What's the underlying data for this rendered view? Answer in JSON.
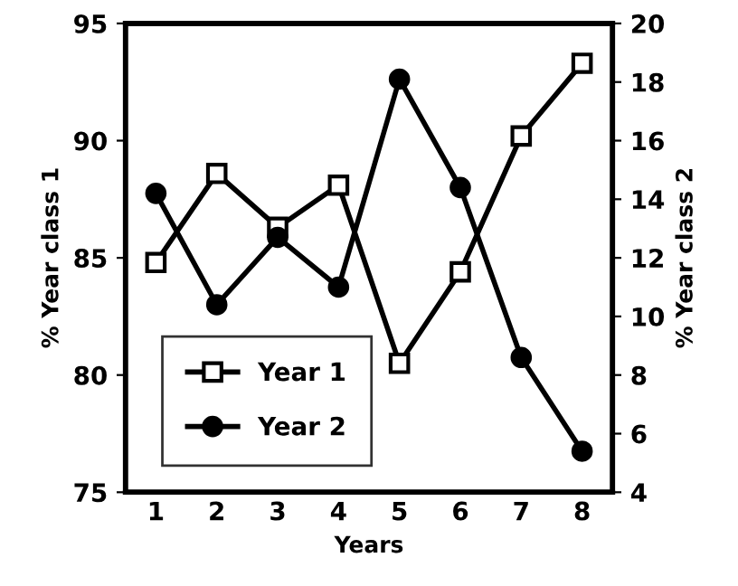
{
  "chart_data": {
    "type": "line",
    "xlabel": "Years",
    "ylabel": "% Year class 1",
    "y2label": "% Year class 2",
    "categories": [
      "1",
      "2",
      "3",
      "4",
      "5",
      "6",
      "7",
      "8"
    ],
    "series": [
      {
        "name": "Year 1",
        "color": "#000000",
        "marker": "square",
        "values": [
          84.8,
          88.6,
          86.3,
          88.1,
          80.5,
          84.4,
          90.2,
          93.3
        ]
      },
      {
        "name": "Year 2",
        "color": "#000000",
        "marker": "circle",
        "axis": "y2",
        "values": [
          14.2,
          10.4,
          12.7,
          11.0,
          18.1,
          14.4,
          8.6,
          5.4
        ]
      }
    ],
    "ylim": [
      75,
      95
    ],
    "yticks": [
      75,
      80,
      85,
      90,
      95
    ],
    "y2lim": [
      4,
      20
    ],
    "y2ticks": [
      4,
      6,
      8,
      10,
      12,
      14,
      16,
      18,
      20
    ],
    "grid": false,
    "legend": "bottom left",
    "line_style": "solid"
  }
}
